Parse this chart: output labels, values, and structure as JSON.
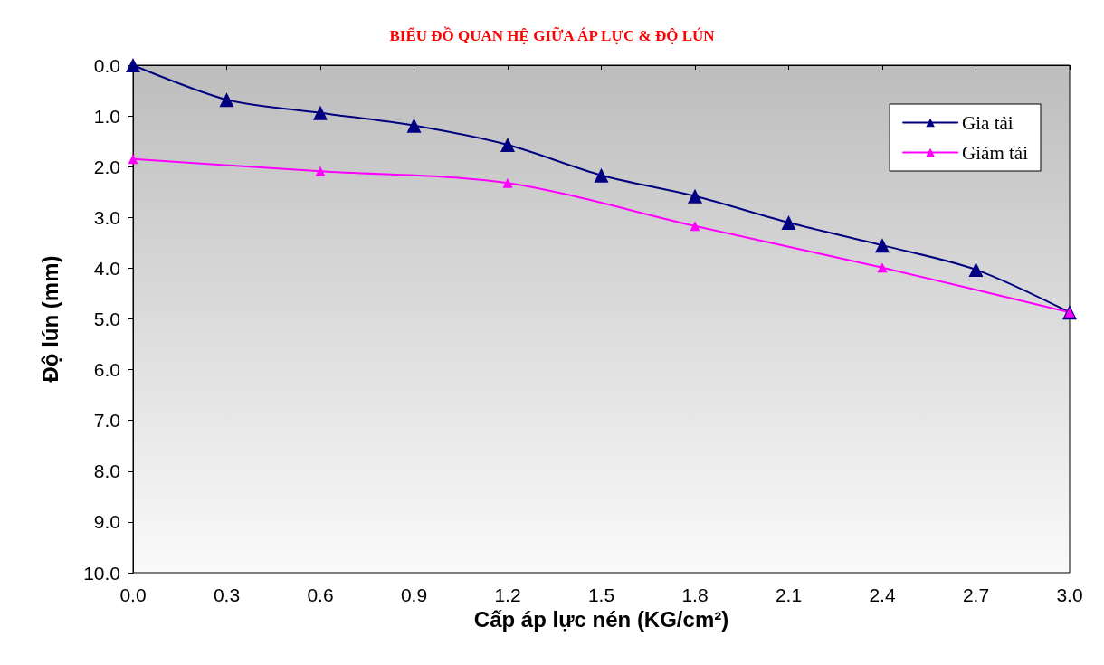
{
  "chart_data": {
    "type": "line",
    "title": "BIỂU ĐỒ QUAN HỆ GIỮA ÁP LỰC & ĐỘ LÚN",
    "xlabel": "Cấp áp lực nén (KG/cm²)",
    "ylabel": "Độ lún (mm)",
    "xlim": [
      0,
      3
    ],
    "xticks": [
      {
        "value": 0,
        "label": "0.0"
      },
      {
        "value": 0.3,
        "label": "0.3"
      },
      {
        "value": 0.6,
        "label": "0.6"
      },
      {
        "value": 0.9,
        "label": "0.9"
      },
      {
        "value": 1.2,
        "label": "1.2"
      },
      {
        "value": 1.5,
        "label": "1.5"
      },
      {
        "value": 1.8,
        "label": "1.8"
      },
      {
        "value": 2.1,
        "label": "2.1"
      },
      {
        "value": 2.4,
        "label": "2.4"
      },
      {
        "value": 2.7,
        "label": "2.7"
      },
      {
        "value": 3,
        "label": "3.0"
      }
    ],
    "ylim": [
      10,
      0
    ],
    "yticks": [
      {
        "value": 0,
        "label": "0.0"
      },
      {
        "value": 1,
        "label": "1.0"
      },
      {
        "value": 2,
        "label": "2.0"
      },
      {
        "value": 3,
        "label": "3.0"
      },
      {
        "value": 4,
        "label": "4.0"
      },
      {
        "value": 5,
        "label": "5.0"
      },
      {
        "value": 6,
        "label": "6.0"
      },
      {
        "value": 7,
        "label": "7.0"
      },
      {
        "value": 8,
        "label": "8.0"
      },
      {
        "value": 9,
        "label": "9.0"
      },
      {
        "value": 10,
        "label": "10.0"
      }
    ],
    "series": [
      {
        "name": "Gia tải",
        "color": "#000080",
        "x": [
          0,
          0.3,
          0.6,
          0.9,
          1.2,
          1.5,
          1.8,
          2.1,
          2.4,
          2.7,
          3.0
        ],
        "values": [
          0,
          0.68,
          0.94,
          1.19,
          1.57,
          2.17,
          2.58,
          3.1,
          3.55,
          4.03,
          4.87
        ]
      },
      {
        "name": "Giảm tải",
        "color": "#ff00ff",
        "x": [
          0,
          0.6,
          1.2,
          1.8,
          2.4,
          3.0
        ],
        "values": [
          1.85,
          2.09,
          2.32,
          3.17,
          3.99,
          4.87
        ]
      }
    ],
    "legend": "top right",
    "marker": "triangle",
    "line_style": "solid",
    "grid": false
  }
}
